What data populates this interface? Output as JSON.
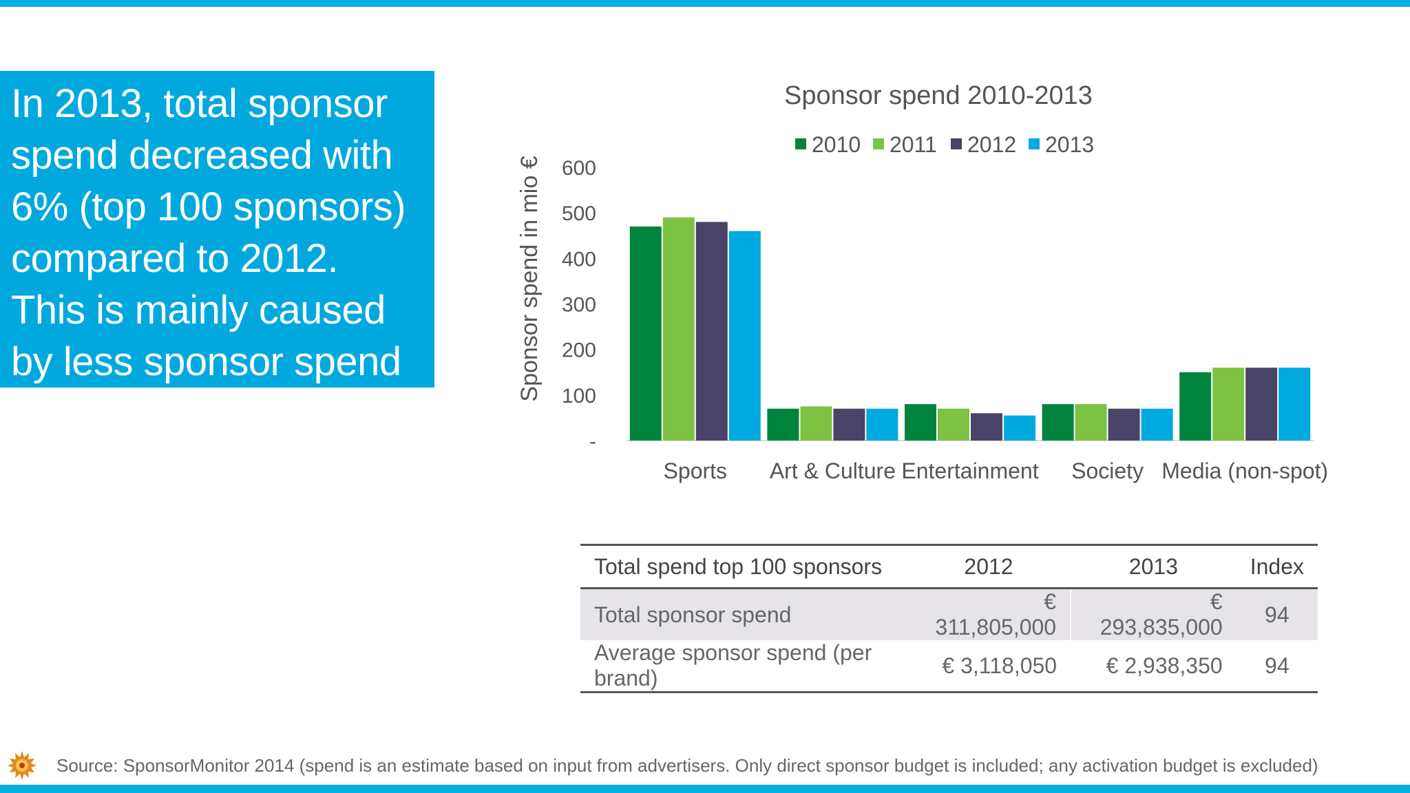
{
  "callout": {
    "text": "In 2013, total sponsor spend decreased with 6% (top 100 sponsors) compared to 2012. This is mainly caused by less sponsor spend in sport"
  },
  "chart_data": {
    "type": "bar",
    "title": "Sponsor spend 2010-2013",
    "xlabel": "",
    "ylabel": "Sponsor spend in mio €",
    "ylim": [
      0,
      600
    ],
    "yticks": [
      0,
      100,
      200,
      300,
      400,
      500,
      600
    ],
    "ytick_labels": [
      "-",
      "100",
      "200",
      "300",
      "400",
      "500",
      "600"
    ],
    "grid": false,
    "legend_position": "top-center",
    "categories": [
      "Sports",
      "Art & Culture",
      "Entertainment",
      "Society",
      "Media (non-spot)"
    ],
    "series": [
      {
        "name": "2010",
        "color": "#00843d",
        "values": [
          470,
          70,
          80,
          80,
          150
        ]
      },
      {
        "name": "2011",
        "color": "#7dc242",
        "values": [
          490,
          75,
          70,
          80,
          160
        ]
      },
      {
        "name": "2012",
        "color": "#4a4368",
        "values": [
          480,
          70,
          60,
          70,
          160
        ]
      },
      {
        "name": "2013",
        "color": "#00a9e0",
        "values": [
          460,
          70,
          55,
          70,
          160
        ]
      }
    ]
  },
  "table": {
    "headers": [
      "Total spend top 100 sponsors",
      "2012",
      "2013",
      "Index"
    ],
    "rows": [
      [
        "Total sponsor spend",
        "€ 311,805,000",
        "€ 293,835,000",
        "94"
      ],
      [
        "Average sponsor spend (per brand)",
        "€ 3,118,050",
        "€ 2,938,350",
        "94"
      ]
    ]
  },
  "footer": {
    "logo_icon": "sun-logo-icon",
    "source": "Source: SponsorMonitor 2014 (spend is an estimate based on input from advertisers. Only direct sponsor budget is included; any activation budget is excluded)"
  },
  "colors": {
    "accent": "#0aaee2",
    "callout_background": "#00a8de",
    "table_shaded_row": "#e6e4e8"
  }
}
